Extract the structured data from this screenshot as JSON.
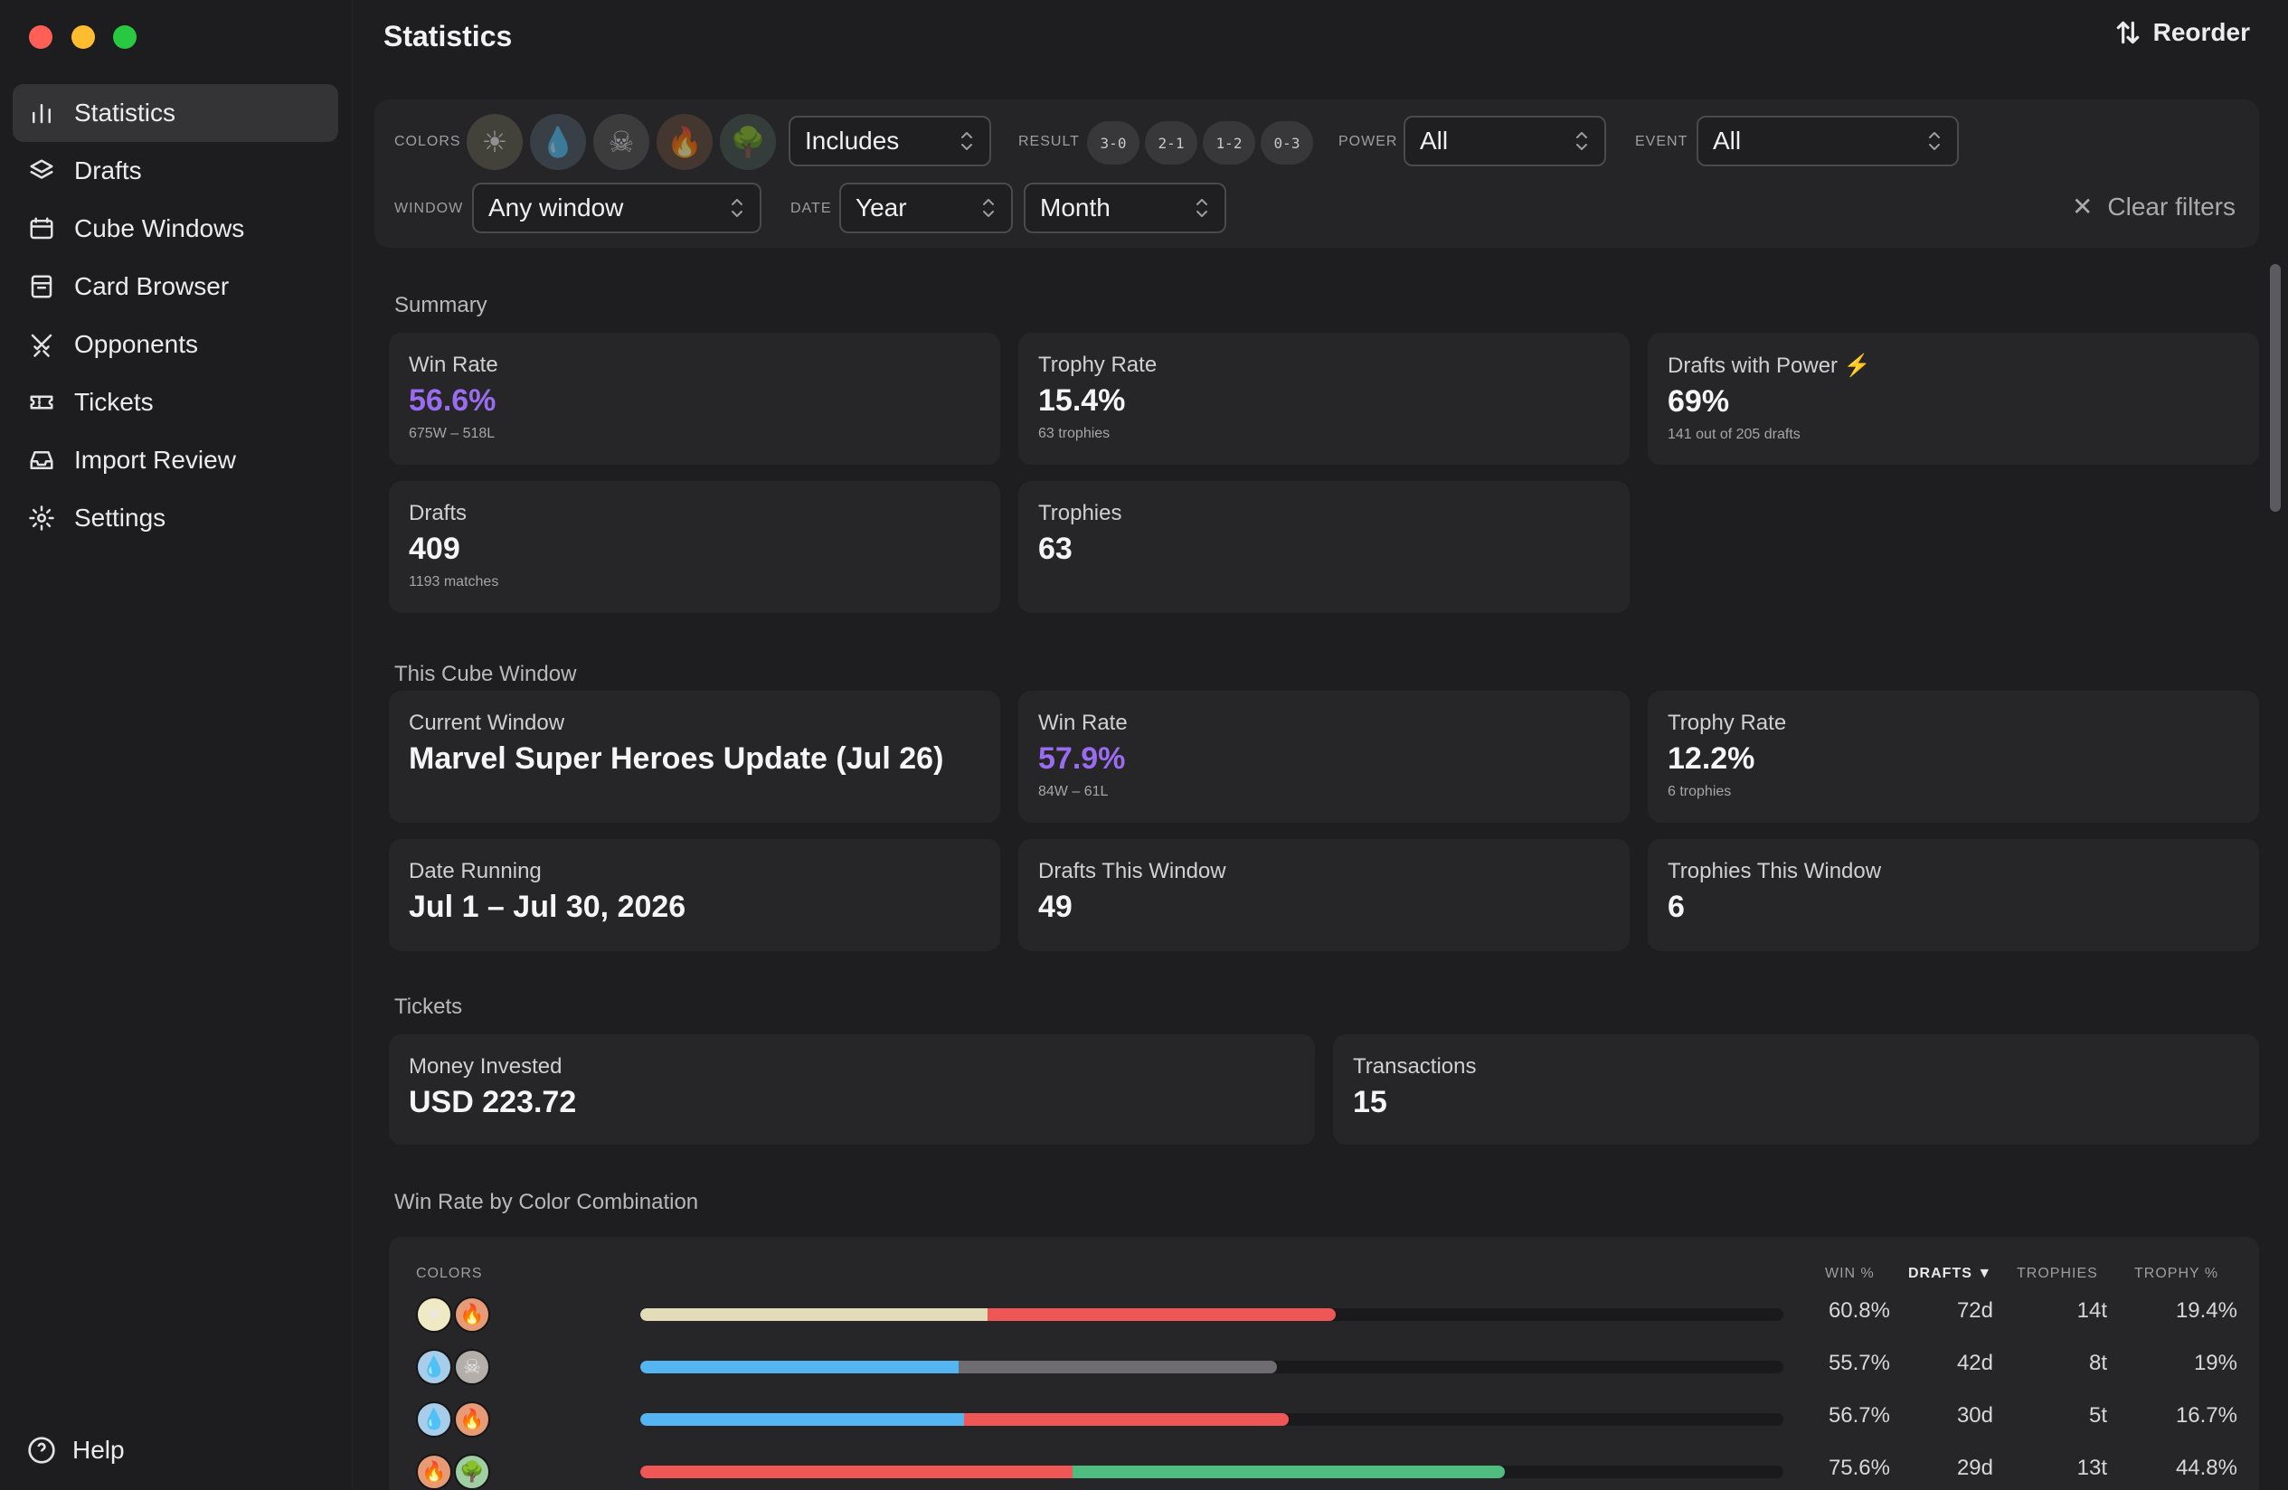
{
  "app": {
    "title": "Statistics",
    "reorder_label": "Reorder",
    "help_label": "Help"
  },
  "nav": [
    {
      "label": "Statistics",
      "icon": "bar-chart-icon"
    },
    {
      "label": "Drafts",
      "icon": "layers-icon"
    },
    {
      "label": "Cube Windows",
      "icon": "calendar-window-icon"
    },
    {
      "label": "Card Browser",
      "icon": "card-box-icon"
    },
    {
      "label": "Opponents",
      "icon": "crossed-swords-icon"
    },
    {
      "label": "Tickets",
      "icon": "ticket-icon"
    },
    {
      "label": "Import Review",
      "icon": "inbox-icon"
    },
    {
      "label": "Settings",
      "icon": "gear-icon"
    }
  ],
  "filters": {
    "colors_label": "COLORS",
    "colors": [
      {
        "name": "white",
        "glyph": "☀",
        "color": "#d9d3a8"
      },
      {
        "name": "blue",
        "glyph": "💧",
        "color": "#9cc0e0"
      },
      {
        "name": "black",
        "glyph": "☠",
        "color": "#a9a4a0"
      },
      {
        "name": "red",
        "glyph": "🔥",
        "color": "#e3a07f"
      },
      {
        "name": "green",
        "glyph": "🌳",
        "color": "#9fc9a3"
      }
    ],
    "color_mode": "Includes",
    "result_label": "RESULT",
    "results": [
      "3-0",
      "2-1",
      "1-2",
      "0-3"
    ],
    "power_label": "POWER",
    "power_value": "All",
    "event_label": "EVENT",
    "event_value": "All",
    "window_label": "WINDOW",
    "window_value": "Any window",
    "date_label": "DATE",
    "date_year": "Year",
    "date_month": "Month",
    "clear_label": "Clear filters"
  },
  "summary": {
    "title": "Summary",
    "win_rate": {
      "label": "Win Rate",
      "value": "56.6%",
      "sub": "675W – 518L"
    },
    "trophy_rate": {
      "label": "Trophy Rate",
      "value": "15.4%",
      "sub": "63 trophies"
    },
    "drafts_power": {
      "label": "Drafts with Power ⚡",
      "value": "69%",
      "sub": "141 out of 205 drafts"
    },
    "drafts": {
      "label": "Drafts",
      "value": "409",
      "sub": "1193 matches"
    },
    "trophies": {
      "label": "Trophies",
      "value": "63"
    }
  },
  "cube_window": {
    "title": "This Cube Window",
    "current": {
      "label": "Current Window",
      "value": "Marvel Super Heroes Update (Jul 26)"
    },
    "win_rate": {
      "label": "Win Rate",
      "value": "57.9%",
      "sub": "84W – 61L"
    },
    "trophy_rate": {
      "label": "Trophy Rate",
      "value": "12.2%",
      "sub": "6 trophies"
    },
    "date_running": {
      "label": "Date Running",
      "value": "Jul 1 – Jul 30, 2026"
    },
    "drafts": {
      "label": "Drafts This Window",
      "value": "49"
    },
    "trophies": {
      "label": "Trophies This Window",
      "value": "6"
    }
  },
  "tickets": {
    "title": "Tickets",
    "money": {
      "label": "Money Invested",
      "value": "USD 223.72"
    },
    "transactions": {
      "label": "Transactions",
      "value": "15"
    }
  },
  "combos": {
    "title": "Win Rate by Color Combination",
    "headers": {
      "colors": "COLORS",
      "win": "WIN %",
      "drafts": "DRAFTS ▼",
      "trophies": "TROPHIES",
      "trophy_pct": "TROPHY %"
    },
    "rows": [
      {
        "pips": [
          "white",
          "red"
        ],
        "win": "60.8%",
        "drafts": "72d",
        "trophies": "14t",
        "trophy_pct": "19.4%",
        "bar_fraction": 0.608
      },
      {
        "pips": [
          "blue",
          "black"
        ],
        "win": "55.7%",
        "drafts": "42d",
        "trophies": "8t",
        "trophy_pct": "19%",
        "bar_fraction": 0.557
      },
      {
        "pips": [
          "blue",
          "red"
        ],
        "win": "56.7%",
        "drafts": "30d",
        "trophies": "5t",
        "trophy_pct": "16.7%",
        "bar_fraction": 0.567
      },
      {
        "pips": [
          "red",
          "green"
        ],
        "win": "75.6%",
        "drafts": "29d",
        "trophies": "13t",
        "trophy_pct": "44.8%",
        "bar_fraction": 0.756
      }
    ],
    "bar_colors": {
      "white": "#e2dcb8",
      "blue": "#54b5f2",
      "black": "#6e6c70",
      "red": "#ef5656",
      "green": "#4fbd7f"
    },
    "pip_colors": {
      "white": "#efe9c4",
      "blue": "#a7cdea",
      "black": "#b3aeaa",
      "red": "#e69a76",
      "green": "#9fcea3"
    },
    "pip_glyphs": {
      "white": "☀",
      "blue": "💧",
      "black": "☠",
      "red": "🔥",
      "green": "🌳"
    }
  }
}
